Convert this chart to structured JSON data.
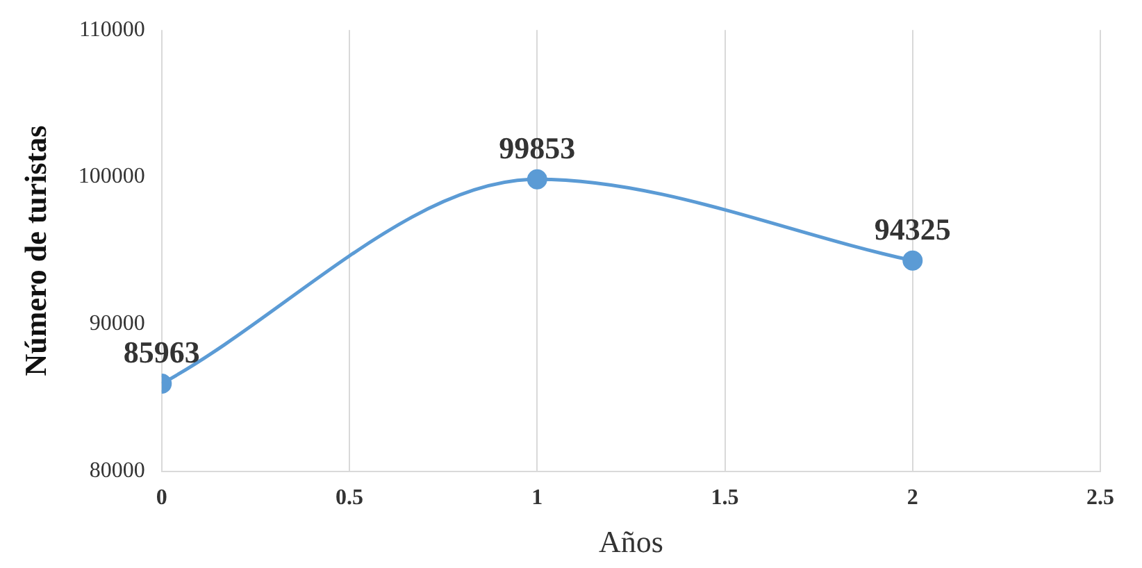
{
  "chart_data": {
    "type": "line",
    "xlabel": "Años",
    "ylabel": "Número de turistas",
    "x": [
      0,
      1,
      2
    ],
    "series": [
      {
        "color": "#5b9bd5",
        "values": [
          85963,
          99853,
          94325
        ]
      }
    ],
    "xlim": [
      0,
      2.5
    ],
    "xticks": [
      0,
      0.5,
      1,
      1.5,
      2,
      2.5
    ],
    "ylim": [
      80000,
      110000
    ],
    "yticks": [
      80000,
      90000,
      100000,
      110000
    ],
    "grid": "x",
    "marker": "circle",
    "line_style": "solid",
    "data_labels": true,
    "legend": false
  }
}
